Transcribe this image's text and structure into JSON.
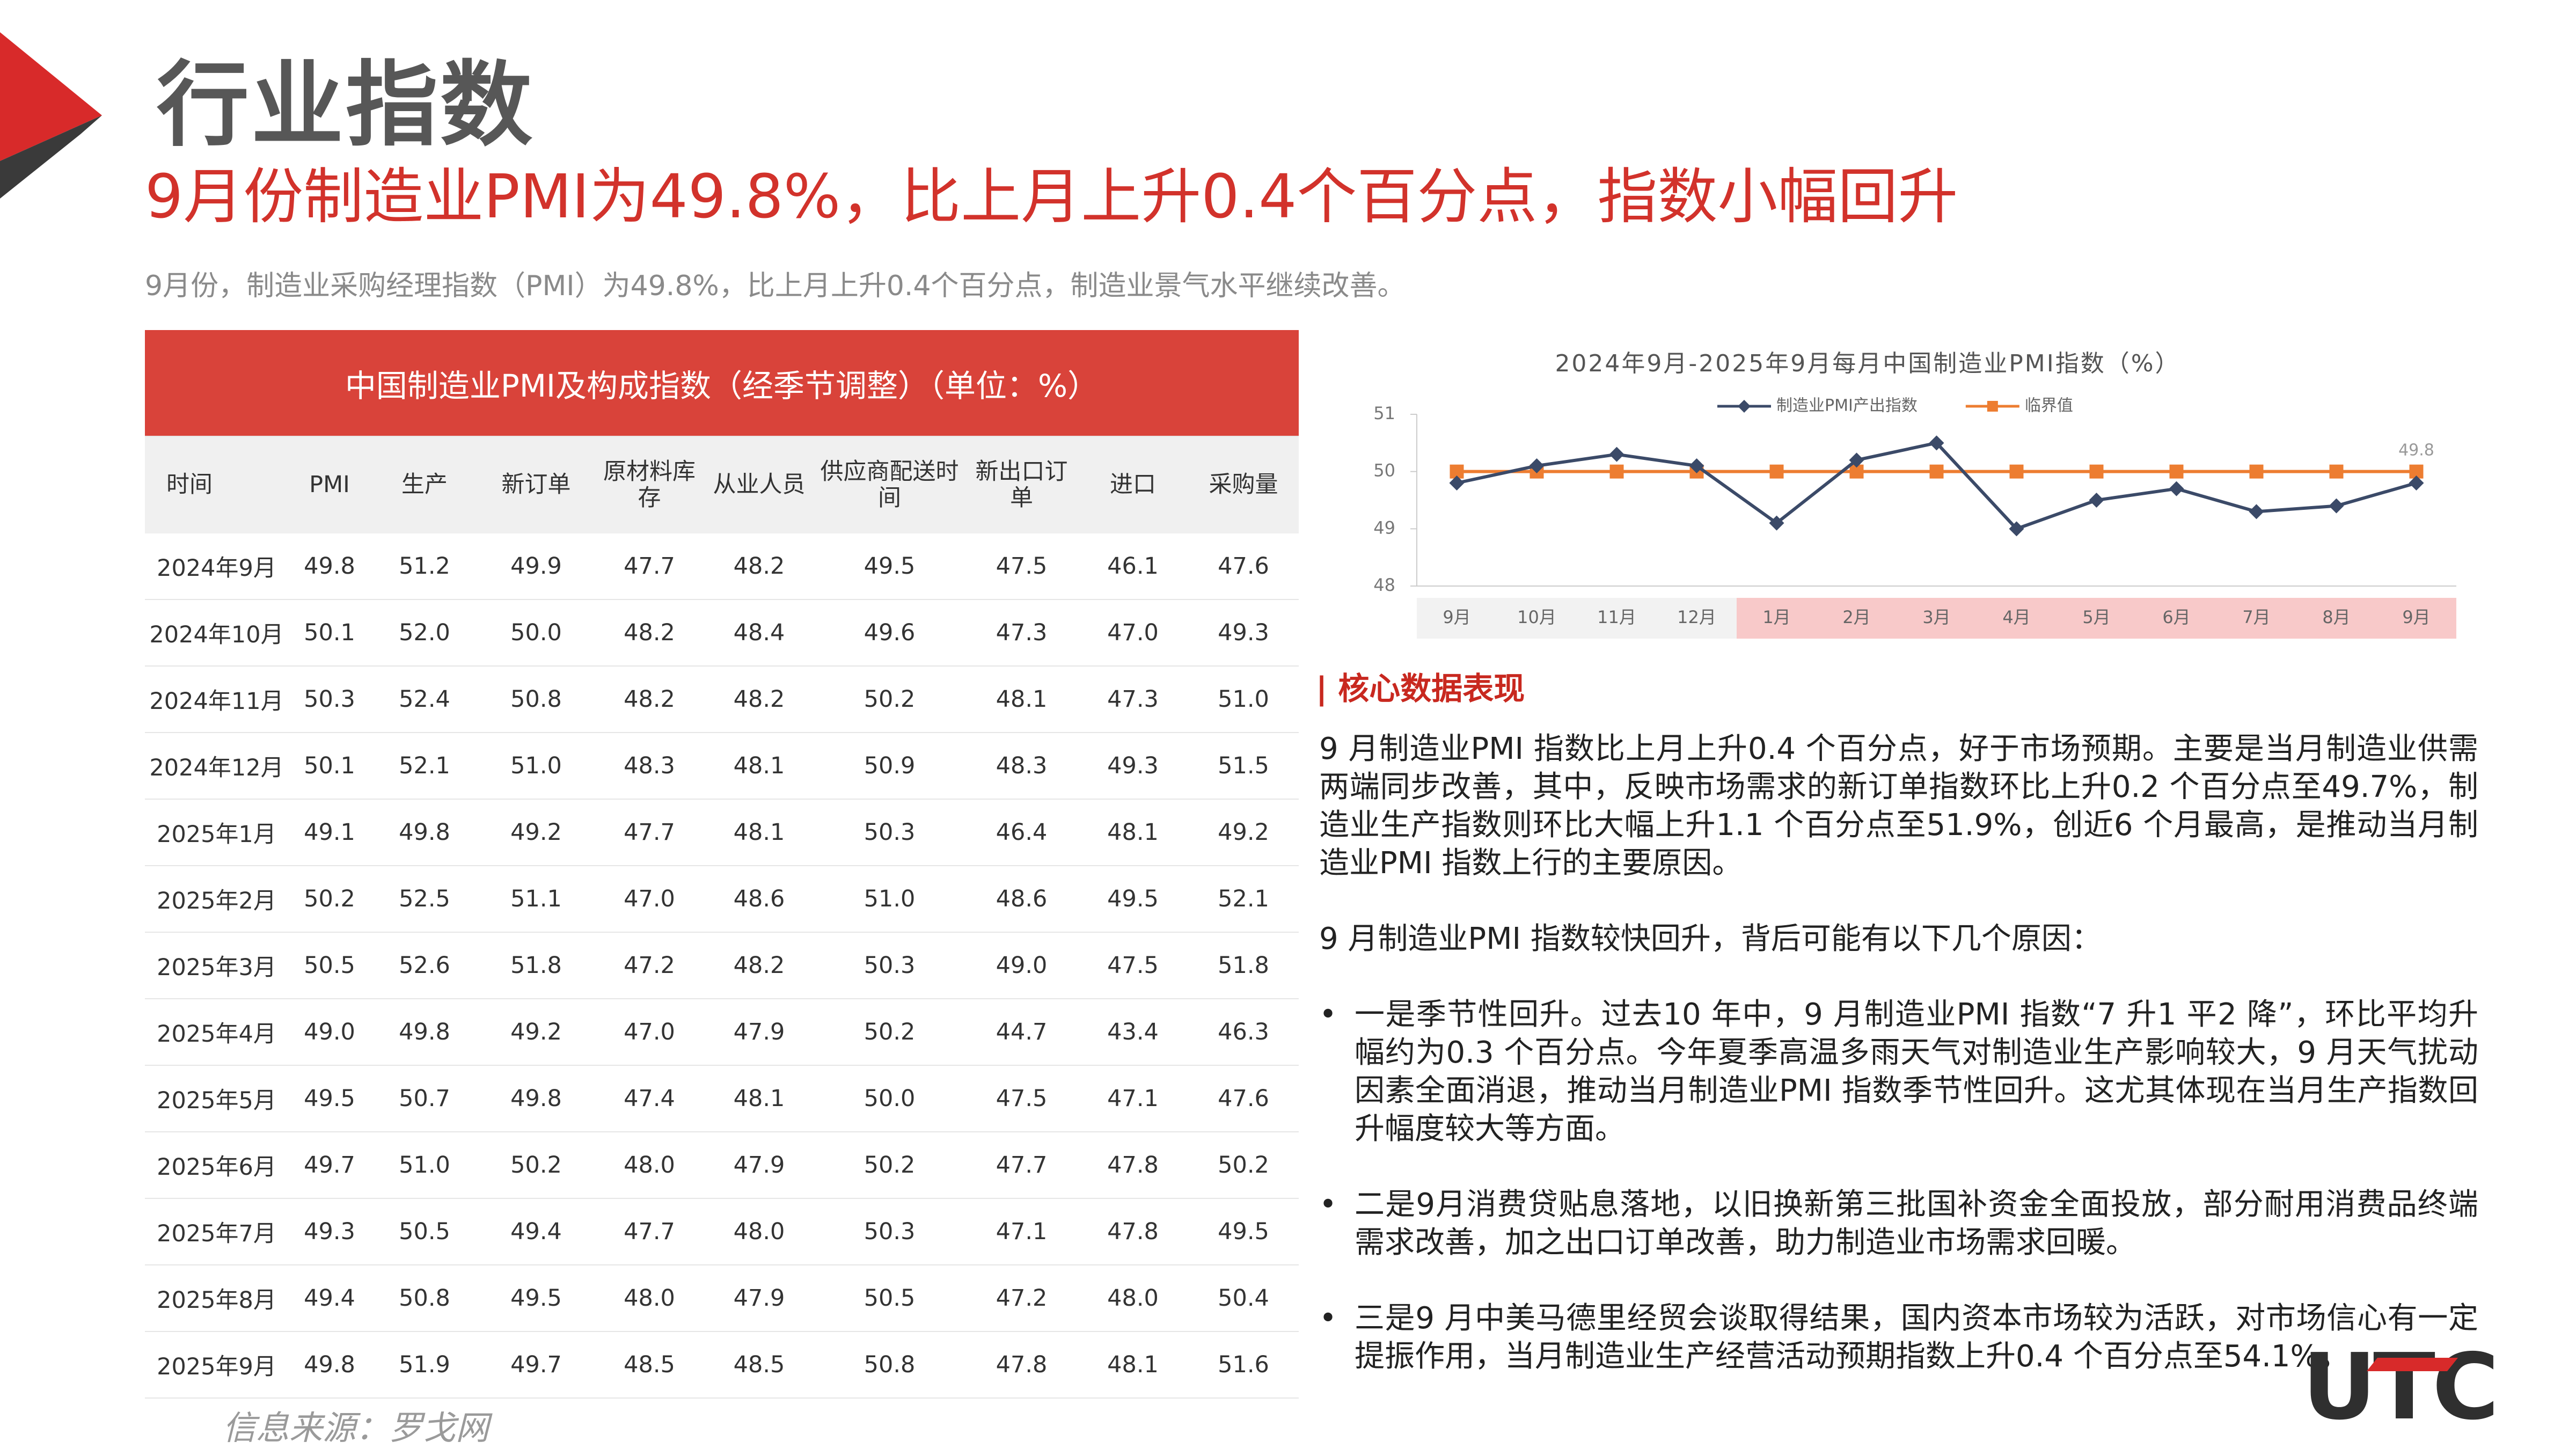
{
  "header": {
    "title": "行业指数"
  },
  "headline": "9月份制造业PMI为49.8%，比上月上升0.4个百分点，指数小幅回升",
  "summary": "9月份，制造业采购经理指数（PMI）为49.8%，比上月上升0.4个百分点，制造业景气水平继续改善。",
  "table": {
    "title": "中国制造业PMI及构成指数（经季节调整）（单位：%）",
    "columns": [
      "时间",
      "PMI",
      "生产",
      "新订单",
      "原材料库存",
      "从业人员",
      "供应商配送时间",
      "新出口订单",
      "进口",
      "采购量"
    ],
    "rows": [
      [
        "2024年9月",
        "49.8",
        "51.2",
        "49.9",
        "47.7",
        "48.2",
        "49.5",
        "47.5",
        "46.1",
        "47.6"
      ],
      [
        "2024年10月",
        "50.1",
        "52.0",
        "50.0",
        "48.2",
        "48.4",
        "49.6",
        "47.3",
        "47.0",
        "49.3"
      ],
      [
        "2024年11月",
        "50.3",
        "52.4",
        "50.8",
        "48.2",
        "48.2",
        "50.2",
        "48.1",
        "47.3",
        "51.0"
      ],
      [
        "2024年12月",
        "50.1",
        "52.1",
        "51.0",
        "48.3",
        "48.1",
        "50.9",
        "48.3",
        "49.3",
        "51.5"
      ],
      [
        "2025年1月",
        "49.1",
        "49.8",
        "49.2",
        "47.7",
        "48.1",
        "50.3",
        "46.4",
        "48.1",
        "49.2"
      ],
      [
        "2025年2月",
        "50.2",
        "52.5",
        "51.1",
        "47.0",
        "48.6",
        "51.0",
        "48.6",
        "49.5",
        "52.1"
      ],
      [
        "2025年3月",
        "50.5",
        "52.6",
        "51.8",
        "47.2",
        "48.2",
        "50.3",
        "49.0",
        "47.5",
        "51.8"
      ],
      [
        "2025年4月",
        "49.0",
        "49.8",
        "49.2",
        "47.0",
        "47.9",
        "50.2",
        "44.7",
        "43.4",
        "46.3"
      ],
      [
        "2025年5月",
        "49.5",
        "50.7",
        "49.8",
        "47.4",
        "48.1",
        "50.0",
        "47.5",
        "47.1",
        "47.6"
      ],
      [
        "2025年6月",
        "49.7",
        "51.0",
        "50.2",
        "48.0",
        "47.9",
        "50.2",
        "47.7",
        "47.8",
        "50.2"
      ],
      [
        "2025年7月",
        "49.3",
        "50.5",
        "49.4",
        "47.7",
        "48.0",
        "50.3",
        "47.1",
        "47.8",
        "49.5"
      ],
      [
        "2025年8月",
        "49.4",
        "50.8",
        "49.5",
        "48.0",
        "47.9",
        "50.5",
        "47.2",
        "48.0",
        "50.4"
      ],
      [
        "2025年9月",
        "49.8",
        "51.9",
        "49.7",
        "48.5",
        "48.5",
        "50.8",
        "47.8",
        "48.1",
        "51.6"
      ]
    ]
  },
  "chart_data": {
    "type": "line",
    "title": "2024年9月-2025年9月每月中国制造业PMI指数（%）",
    "categories": [
      "9月",
      "10月",
      "11月",
      "12月",
      "1月",
      "2月",
      "3月",
      "4月",
      "5月",
      "6月",
      "7月",
      "8月",
      "9月"
    ],
    "series": [
      {
        "name": "制造业PMI产出指数",
        "color": "#3b4a68",
        "values": [
          49.8,
          50.1,
          50.3,
          50.1,
          49.1,
          50.2,
          50.5,
          49.0,
          49.5,
          49.7,
          49.3,
          49.4,
          49.8
        ]
      },
      {
        "name": "临界值",
        "color": "#ed7d31",
        "values": [
          50,
          50,
          50,
          50,
          50,
          50,
          50,
          50,
          50,
          50,
          50,
          50,
          50
        ]
      }
    ],
    "ylim": [
      48,
      51
    ],
    "yticks": [
      48,
      49,
      50,
      51
    ]
  },
  "section": {
    "title": "核心数据表现",
    "paragraphs": [
      "9 月制造业PMI 指数比上月上升0.4 个百分点，好于市场预期。主要是当月制造业供需两端同步改善，其中，反映市场需求的新订单指数环比上升0.2 个百分点至49.7%，制造业生产指数则环比大幅上升1.1 个百分点至51.9%，创近6 个月最高，是推动当月制造业PMI 指数上行的主要原因。",
      "9 月制造业PMI 指数较快回升，背后可能有以下几个原因："
    ],
    "bullets": [
      "一是季节性回升。过去10 年中，9 月制造业PMI 指数“7 升1 平2 降”，环比平均升幅约为0.3 个百分点。今年夏季高温多雨天气对制造业生产影响较大，9 月天气扰动因素全面消退，推动当月制造业PMI 指数季节性回升。这尤其体现在当月生产指数回升幅度较大等方面。",
      "二是9月消费贷贴息落地，以旧换新第三批国补资金全面投放，部分耐用消费品终端需求改善，加之出口订单改善，助力制造业市场需求回暖。",
      "三是9 月中美马德里经贸会谈取得结果，国内资本市场较为活跃，对市场信心有一定提振作用，当月制造业生产经营活动预期指数上升0.4 个百分点至54.1%。"
    ]
  },
  "source": "信息来源：罗戈网",
  "logo": "UTC"
}
